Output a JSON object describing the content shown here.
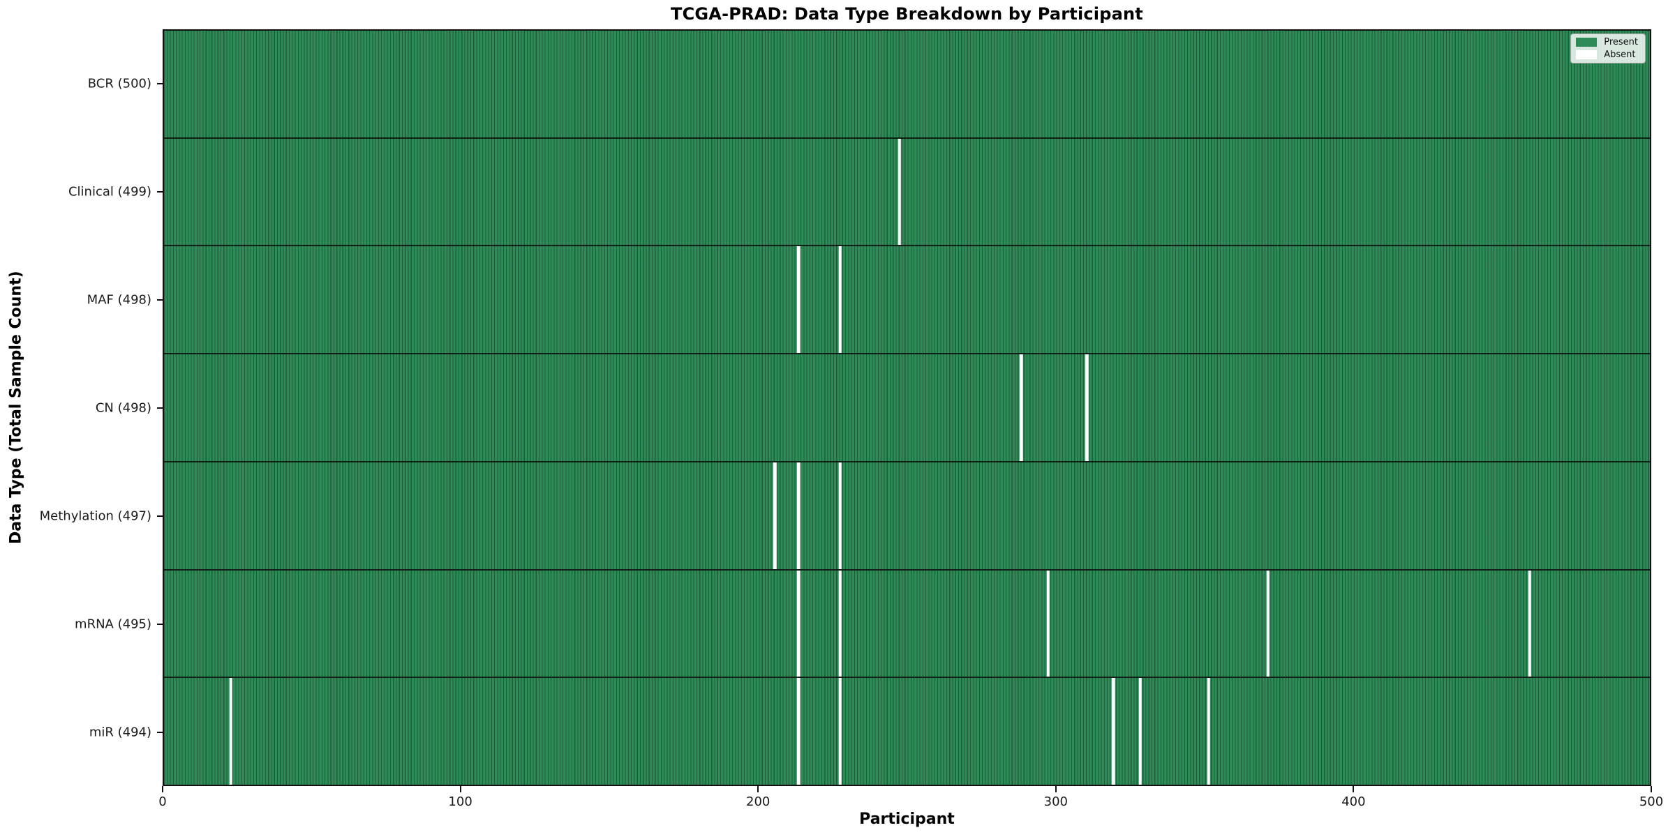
{
  "colors": {
    "present": "#2e8b57",
    "absent": "#ffffff",
    "cell_edge": "rgba(0,0,0,0.33)",
    "row_divider": "rgba(10,15,12,0.85)"
  },
  "legend": {
    "items": [
      {
        "label": "Present",
        "swatch": "present-swatch-icon"
      },
      {
        "label": "Absent",
        "swatch": "absent-swatch-icon"
      }
    ],
    "position": "upper right"
  },
  "chart_data": {
    "type": "heatmap",
    "title": "TCGA-PRAD: Data Type Breakdown by Participant",
    "xlabel": "Participant",
    "ylabel": "Data Type (Total Sample Count)",
    "x_range": [
      0,
      500
    ],
    "x_ticks": [
      0,
      100,
      200,
      300,
      400,
      500
    ],
    "n_participants": 500,
    "grid": false,
    "legend_entries": [
      "Present",
      "Absent"
    ],
    "legend_position": "upper right",
    "rows": [
      {
        "name": "BCR",
        "label": "BCR (500)",
        "total": 500,
        "absent_participants": []
      },
      {
        "name": "Clinical",
        "label": "Clinical (499)",
        "total": 499,
        "absent_participants": [
          247
        ]
      },
      {
        "name": "MAF",
        "label": "MAF (498)",
        "total": 498,
        "absent_participants": [
          213,
          227
        ]
      },
      {
        "name": "CN",
        "label": "CN (498)",
        "total": 498,
        "absent_participants": [
          288,
          310
        ]
      },
      {
        "name": "Methylation",
        "label": "Methylation (497)",
        "total": 497,
        "absent_participants": [
          205,
          213,
          227
        ]
      },
      {
        "name": "mRNA",
        "label": "mRNA (495)",
        "total": 495,
        "absent_participants": [
          213,
          227,
          297,
          371,
          459
        ]
      },
      {
        "name": "miR",
        "label": "miR (494)",
        "total": 494,
        "absent_participants": [
          22,
          213,
          227,
          319,
          328,
          351
        ]
      }
    ]
  }
}
